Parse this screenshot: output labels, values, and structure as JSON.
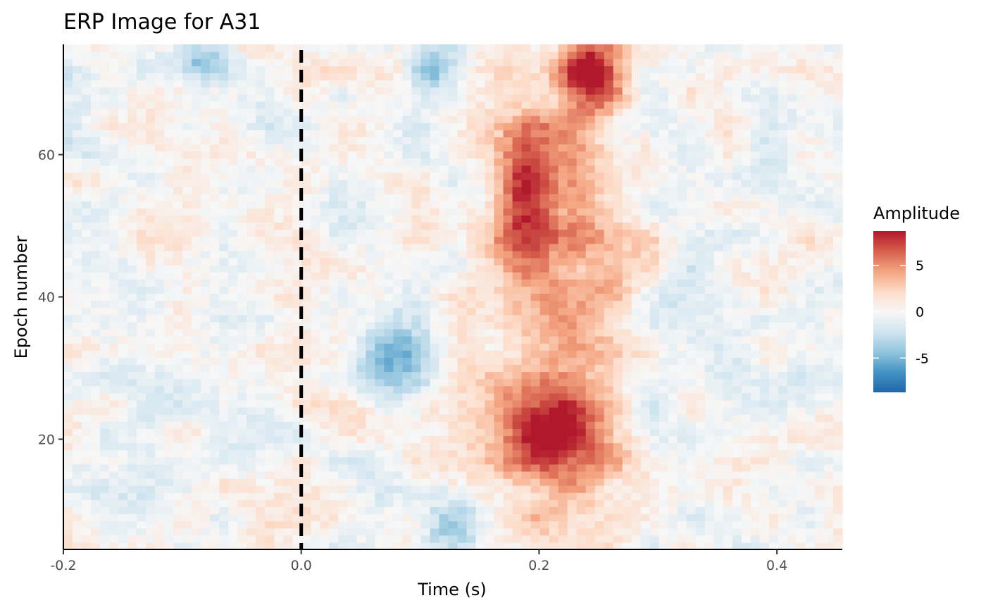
{
  "chart_data": {
    "type": "heatmap",
    "title": "ERP Image for A31",
    "xlabel": "Time (s)",
    "ylabel": "Epoch number",
    "xlim": [
      -0.2,
      0.455
    ],
    "ylim": [
      4.5,
      75.5
    ],
    "x_ticks": [
      -0.2,
      0.0,
      0.2,
      0.4
    ],
    "x_tick_labels": [
      "-0.2",
      "0.0",
      "0.2",
      "0.4"
    ],
    "y_ticks": [
      20,
      40,
      60
    ],
    "y_tick_labels": [
      "20",
      "40",
      "60"
    ],
    "epochs": [
      5,
      75
    ],
    "time_range": [
      -0.2,
      0.455
    ],
    "stimulus_onset_line": 0.0,
    "legend": {
      "title": "Amplitude",
      "ticks": [
        5,
        0,
        -5
      ],
      "tick_labels": [
        "5",
        "0",
        "-5"
      ],
      "range": [
        -8.7,
        8.7
      ],
      "colors": [
        "#2166ac",
        "#4393c3",
        "#92c5de",
        "#d1e5f0",
        "#f7f7f7",
        "#fddbc7",
        "#f4a582",
        "#d6604d",
        "#b2182b"
      ],
      "position": "right"
    },
    "regions": [
      {
        "desc": "early positive band",
        "time": [
          0.17,
          0.26
        ],
        "epochs": [
          5,
          75
        ],
        "amplitude": 5
      },
      {
        "desc": "late peak",
        "time": [
          0.23,
          0.26
        ],
        "epochs": [
          68,
          75
        ],
        "amplitude": 8
      },
      {
        "desc": "positive cluster",
        "time": [
          0.18,
          0.25
        ],
        "epochs": [
          17,
          25
        ],
        "amplitude": 7
      },
      {
        "desc": "positive cluster",
        "time": [
          0.175,
          0.2
        ],
        "epochs": [
          48,
          60
        ],
        "amplitude": 6.5
      },
      {
        "desc": "negative cluster",
        "time": [
          -0.1,
          -0.07
        ],
        "epochs": [
          72,
          75
        ],
        "amplitude": -5
      },
      {
        "desc": "negative cluster",
        "time": [
          0.06,
          0.1
        ],
        "epochs": [
          27,
          38
        ],
        "amplitude": -4
      },
      {
        "desc": "negative cluster",
        "time": [
          0.11,
          0.14
        ],
        "epochs": [
          5,
          10
        ],
        "amplitude": -4
      },
      {
        "desc": "negative cluster",
        "time": [
          0.1,
          0.12
        ],
        "epochs": [
          70,
          75
        ],
        "amplitude": -4.5
      }
    ]
  }
}
